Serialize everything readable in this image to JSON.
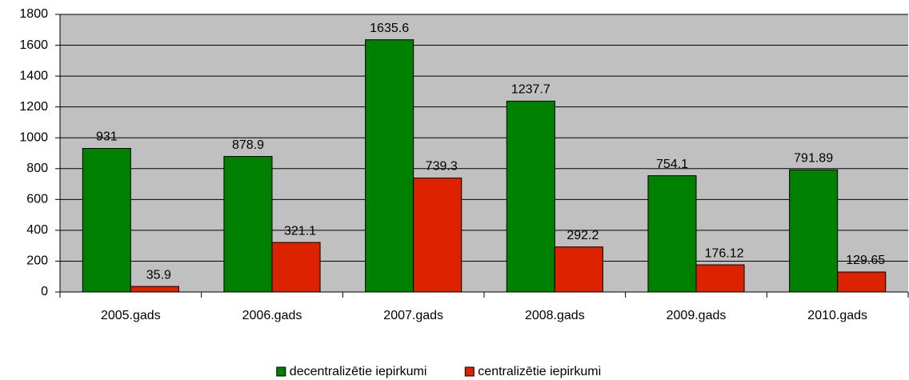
{
  "chart_data": {
    "type": "bar",
    "categories": [
      "2005.gads",
      "2006.gads",
      "2007.gads",
      "2008.gads",
      "2009.gads",
      "2010.gads"
    ],
    "series": [
      {
        "name": "decentralizētie iepirkumi",
        "color": "#008000",
        "values": [
          931,
          878.9,
          1635.6,
          1237.7,
          754.1,
          791.89
        ]
      },
      {
        "name": "centralizētie iepirkumi",
        "color": "#dd2200",
        "values": [
          35.9,
          321.1,
          739.3,
          292.2,
          176.12,
          129.65
        ]
      }
    ],
    "ylim": [
      0,
      1800
    ],
    "yticks": [
      0,
      200,
      400,
      600,
      800,
      1000,
      1200,
      1400,
      1600,
      1800
    ],
    "grid": true,
    "legend": "bottom"
  }
}
